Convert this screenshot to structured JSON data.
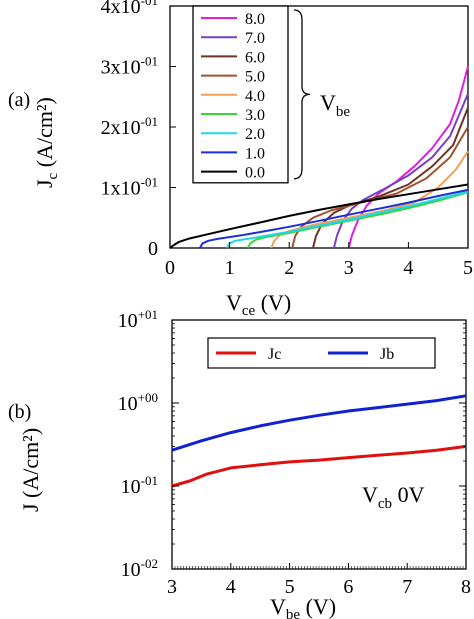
{
  "chart_data": [
    {
      "type": "line",
      "panel_label": "(a)",
      "xlabel": {
        "main": "V",
        "sub": "ce",
        "rest": " (V)"
      },
      "ylabel": {
        "main": "J",
        "sub": "c",
        "rest": " (A/cm²)"
      },
      "xlim": [
        0,
        5
      ],
      "ylim": [
        0,
        0.4
      ],
      "x_ticks": [
        "0",
        "1",
        "2",
        "3",
        "4",
        "5"
      ],
      "y_ticks": [
        {
          "value": 0,
          "base": "0",
          "exp": ""
        },
        {
          "value": 0.1,
          "base": "1x10",
          "exp": "-01"
        },
        {
          "value": 0.2,
          "base": "2x10",
          "exp": "-01"
        },
        {
          "value": 0.3,
          "base": "3x10",
          "exp": "-01"
        },
        {
          "value": 0.4,
          "base": "4x10",
          "exp": "-01"
        }
      ],
      "legend_placement": "top-center",
      "legend_annotation": {
        "main": "V",
        "sub": "be"
      },
      "series": [
        {
          "name": "8.0",
          "color": "#e21ce2",
          "x": [
            3.0,
            3.05,
            3.15,
            3.3,
            3.5,
            3.8,
            4.1,
            4.4,
            4.7,
            4.85,
            5.0
          ],
          "y": [
            0.0,
            0.02,
            0.045,
            0.07,
            0.09,
            0.11,
            0.135,
            0.165,
            0.205,
            0.245,
            0.3
          ]
        },
        {
          "name": "7.0",
          "color": "#7a3fc4",
          "x": [
            2.75,
            2.8,
            2.9,
            3.05,
            3.25,
            3.6,
            4.0,
            4.4,
            4.7,
            5.0
          ],
          "y": [
            0.0,
            0.02,
            0.045,
            0.065,
            0.08,
            0.098,
            0.12,
            0.15,
            0.185,
            0.255
          ]
        },
        {
          "name": "6.0",
          "color": "#6e3322",
          "x": [
            2.4,
            2.45,
            2.55,
            2.75,
            3.0,
            3.5,
            4.0,
            4.4,
            4.75,
            5.0
          ],
          "y": [
            0.0,
            0.02,
            0.04,
            0.058,
            0.07,
            0.085,
            0.105,
            0.135,
            0.17,
            0.232
          ]
        },
        {
          "name": "5.0",
          "color": "#a0522d",
          "x": [
            2.05,
            2.1,
            2.2,
            2.4,
            2.7,
            3.2,
            3.8,
            4.3,
            4.7,
            5.0
          ],
          "y": [
            0.0,
            0.02,
            0.035,
            0.05,
            0.062,
            0.075,
            0.09,
            0.115,
            0.15,
            0.2
          ]
        },
        {
          "name": "4.0",
          "color": "#f2a057",
          "x": [
            1.7,
            1.75,
            1.85,
            2.0,
            2.4,
            3.0,
            3.6,
            4.1,
            4.5,
            4.8,
            5.0
          ],
          "y": [
            0.0,
            0.012,
            0.022,
            0.028,
            0.038,
            0.05,
            0.062,
            0.075,
            0.1,
            0.13,
            0.16
          ]
        },
        {
          "name": "3.0",
          "color": "#34d734",
          "x": [
            1.3,
            1.35,
            1.45,
            1.6,
            2.0,
            2.5,
            3.0,
            3.5,
            4.0,
            4.5,
            5.0
          ],
          "y": [
            0.0,
            0.008,
            0.014,
            0.018,
            0.025,
            0.035,
            0.045,
            0.055,
            0.066,
            0.078,
            0.092
          ]
        },
        {
          "name": "2.0",
          "color": "#1fd6f0",
          "x": [
            0.95,
            1.0,
            1.1,
            1.3,
            1.6,
            2.0,
            2.5,
            3.0,
            3.5,
            4.0,
            4.5,
            5.0
          ],
          "y": [
            0.0,
            0.008,
            0.012,
            0.015,
            0.02,
            0.027,
            0.037,
            0.047,
            0.058,
            0.069,
            0.081,
            0.093
          ]
        },
        {
          "name": "1.0",
          "color": "#1a2fd8",
          "x": [
            0.5,
            0.55,
            0.65,
            0.8,
            1.2,
            1.6,
            2.0,
            2.5,
            3.0,
            3.5,
            4.0,
            4.5,
            5.0
          ],
          "y": [
            0.0,
            0.008,
            0.012,
            0.015,
            0.021,
            0.028,
            0.035,
            0.045,
            0.055,
            0.065,
            0.075,
            0.086,
            0.096
          ]
        },
        {
          "name": "0.0",
          "color": "#000000",
          "x": [
            0.0,
            0.05,
            0.15,
            0.3,
            0.6,
            1.0,
            1.5,
            2.0,
            2.5,
            3.0,
            3.5,
            4.0,
            4.5,
            5.0
          ],
          "y": [
            0.0,
            0.004,
            0.01,
            0.015,
            0.022,
            0.031,
            0.042,
            0.053,
            0.063,
            0.072,
            0.081,
            0.089,
            0.097,
            0.105
          ]
        }
      ]
    },
    {
      "type": "line",
      "panel_label": "(b)",
      "xlabel": {
        "main": "V",
        "sub": "be",
        "rest": " (V)"
      },
      "ylabel": {
        "main": "J (A/cm²)",
        "sub": "",
        "rest": ""
      },
      "xlim": [
        3,
        8
      ],
      "ylim": [
        0.01,
        10
      ],
      "yscale": "log",
      "x_ticks": [
        "3",
        "4",
        "5",
        "6",
        "7",
        "8"
      ],
      "y_ticks": [
        {
          "value": 10,
          "base": "10",
          "exp": "+01"
        },
        {
          "value": 1,
          "base": "10",
          "exp": "+00"
        },
        {
          "value": 0.1,
          "base": "10",
          "exp": "-01"
        },
        {
          "value": 0.01,
          "base": "10",
          "exp": "-02"
        }
      ],
      "legend_placement": "top-center",
      "annotation": {
        "main": "V",
        "sub": "cb",
        "rest": " 0V"
      },
      "series": [
        {
          "name": "Jc",
          "color": "#e01010",
          "x": [
            3.0,
            3.3,
            3.6,
            4.0,
            4.5,
            5.0,
            5.5,
            6.0,
            6.5,
            7.0,
            7.5,
            8.0
          ],
          "y": [
            0.1,
            0.115,
            0.14,
            0.165,
            0.18,
            0.195,
            0.205,
            0.22,
            0.235,
            0.25,
            0.27,
            0.3
          ]
        },
        {
          "name": "Jb",
          "color": "#1022d0",
          "x": [
            3.0,
            3.5,
            4.0,
            4.5,
            5.0,
            5.5,
            6.0,
            6.5,
            7.0,
            7.5,
            8.0
          ],
          "y": [
            0.27,
            0.35,
            0.44,
            0.53,
            0.62,
            0.71,
            0.8,
            0.88,
            0.97,
            1.07,
            1.22
          ]
        }
      ]
    }
  ]
}
